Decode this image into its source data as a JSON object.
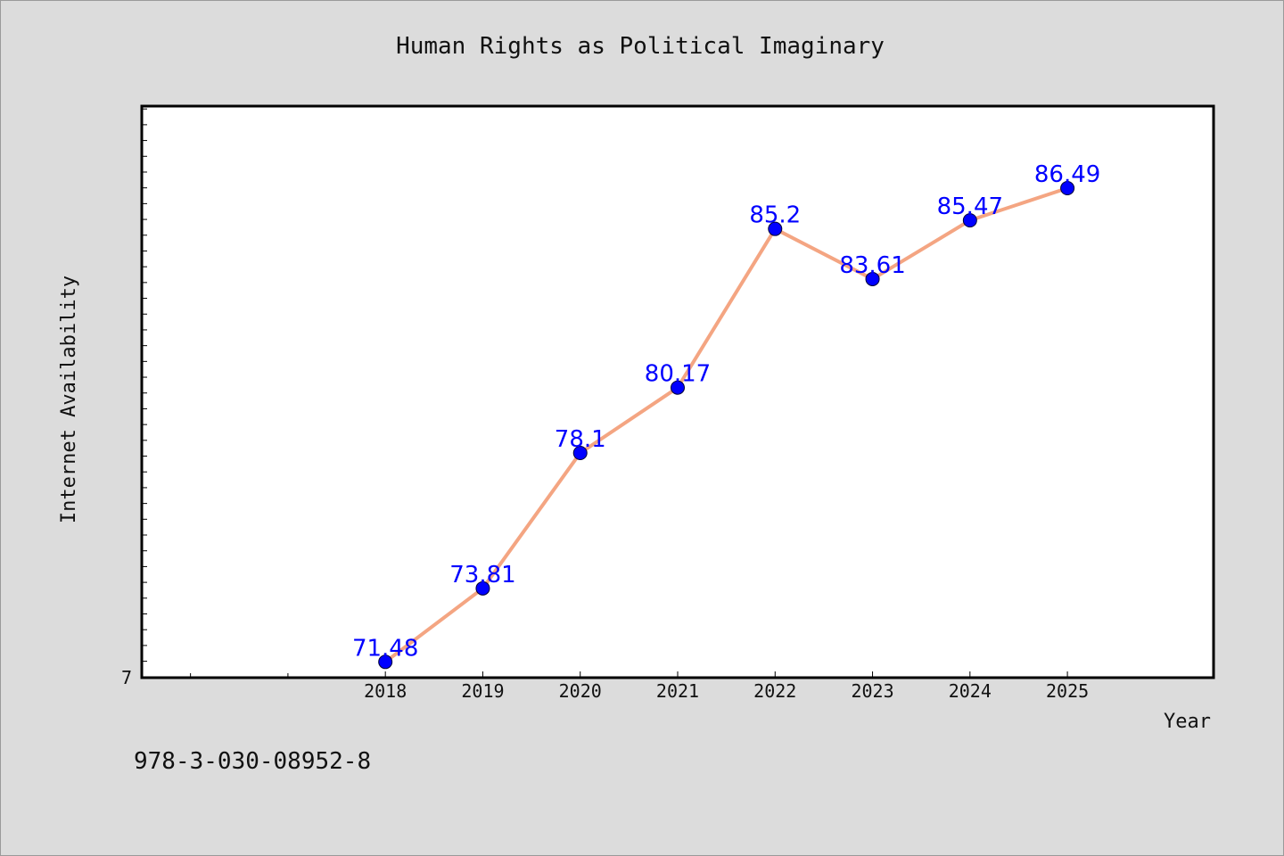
{
  "isbn": "978-3-030-08952-8",
  "chart_data": {
    "type": "line",
    "title": "Human Rights as Political Imaginary",
    "xlabel": "Year",
    "ylabel": "Internet Availability",
    "x": [
      "2018",
      "2019",
      "2020",
      "2021",
      "2022",
      "2023",
      "2024",
      "2025"
    ],
    "series": [
      {
        "values": [
          71.48,
          73.81,
          78.1,
          80.17,
          85.2,
          83.61,
          85.47,
          86.49
        ],
        "labels": [
          "71.48",
          "73.81",
          "78.1",
          "80.17",
          "85.2",
          "83.61",
          "85.47",
          "86.49"
        ]
      }
    ],
    "y_tick_label": "7",
    "ylim": [
      70.98,
      89.09
    ],
    "xlim": [
      2015.5,
      2026.5
    ],
    "grid": false,
    "line_color": "#f4a582",
    "marker_color": "#0000ff",
    "label_color": "#0000ff"
  }
}
